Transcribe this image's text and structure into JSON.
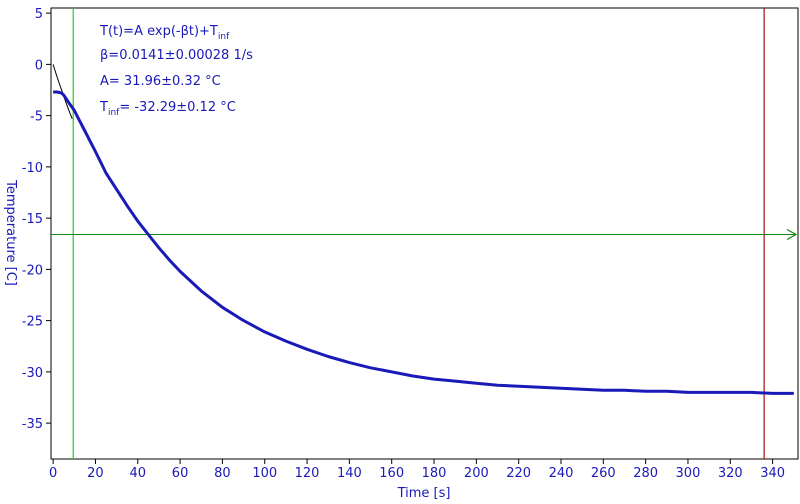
{
  "chart_data": {
    "type": "line",
    "xlabel": "Time [s]",
    "ylabel": "Temperature [C]",
    "xlim": [
      -1,
      352
    ],
    "ylim": [
      -38.5,
      5.5
    ],
    "xticks": [
      0,
      20,
      40,
      60,
      80,
      100,
      120,
      140,
      160,
      180,
      200,
      220,
      240,
      260,
      280,
      300,
      320,
      340
    ],
    "yticks": [
      5,
      0,
      -5,
      -10,
      -15,
      -20,
      -25,
      -30,
      -35
    ],
    "grid": false,
    "colors": {
      "data": "#1a1ab8",
      "axis_text": "#1a1ab8",
      "fit_line": "#000000",
      "start_cursor": "#22cc22",
      "end_cursor": "#aa1111",
      "level_arrow": "#118811"
    },
    "annotations": {
      "formula": {
        "main": "T(t)=A exp(-βt)+T",
        "sub": "inf"
      },
      "beta": "β=0.0141±0.00028 1/s",
      "amplitude": "A= 31.96±0.32 °C",
      "tinf": {
        "main": "T",
        "sub": "inf",
        "rest": "= -32.29±0.12 °C"
      }
    },
    "series": [
      {
        "values_x": [
          0,
          2,
          4,
          5,
          6,
          7,
          8,
          9,
          10,
          12,
          15,
          20,
          25,
          30,
          35,
          40,
          45,
          50,
          55,
          60,
          70,
          80,
          90,
          100,
          110,
          120,
          130,
          140,
          150,
          160,
          170,
          180,
          190,
          200,
          210,
          220,
          230,
          240,
          250,
          260,
          270,
          280,
          290,
          300,
          310,
          320,
          330,
          340,
          350
        ],
        "values_y": [
          -2.7,
          -2.7,
          -2.8,
          -3.0,
          -3.3,
          -3.6,
          -3.9,
          -4.2,
          -4.5,
          -5.3,
          -6.5,
          -8.5,
          -10.6,
          -12.2,
          -13.8,
          -15.3,
          -16.6,
          -17.9,
          -19.1,
          -20.2,
          -22.1,
          -23.7,
          -25.0,
          -26.1,
          -27.0,
          -27.8,
          -28.5,
          -29.1,
          -29.6,
          -30.0,
          -30.4,
          -30.7,
          -30.9,
          -31.1,
          -31.3,
          -31.4,
          -31.5,
          -31.6,
          -31.7,
          -31.8,
          -31.8,
          -31.9,
          -31.9,
          -32.0,
          -32.0,
          -32.0,
          -32.0,
          -32.1,
          -32.1
        ]
      }
    ],
    "fit": {
      "x": [
        0,
        1,
        2,
        3,
        4,
        5,
        6,
        7,
        8,
        9
      ],
      "y": [
        0.0,
        -0.66,
        -1.29,
        -1.91,
        -2.51,
        -3.1,
        -3.68,
        -4.23,
        -4.77,
        -5.3
      ]
    },
    "markers": {
      "start_time": 9.5,
      "end_time": 336,
      "level_temperature": -16.6
    }
  }
}
